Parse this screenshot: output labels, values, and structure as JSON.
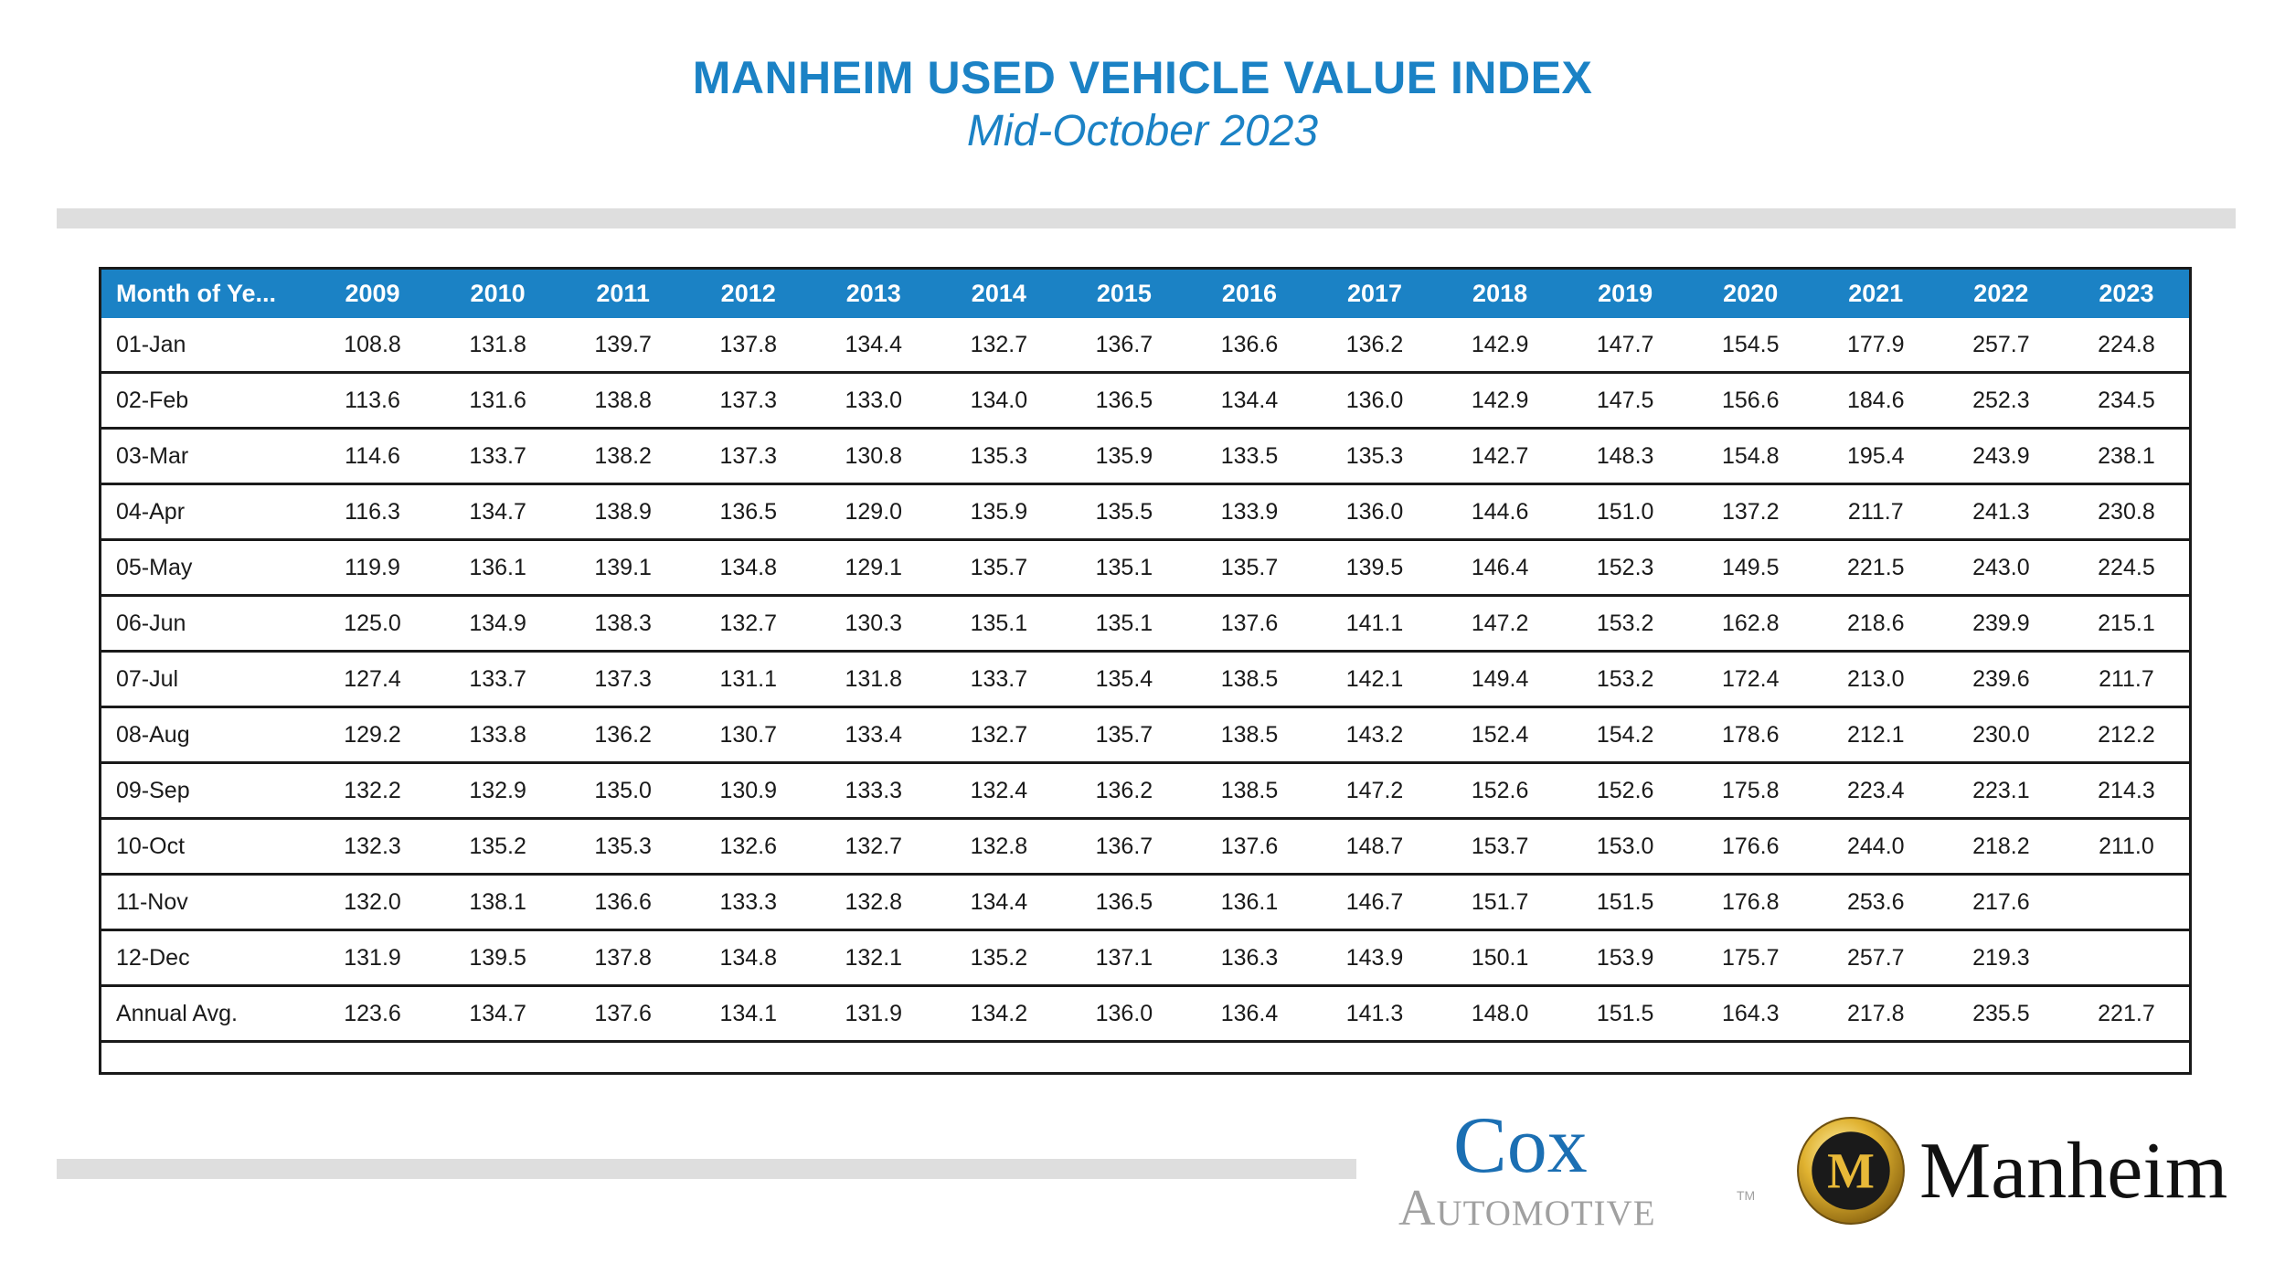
{
  "header": {
    "title": "MANHEIM USED VEHICLE VALUE INDEX",
    "subtitle": "Mid-October 2023"
  },
  "table": {
    "columns": [
      "Month of Ye...",
      "2009",
      "2010",
      "2011",
      "2012",
      "2013",
      "2014",
      "2015",
      "2016",
      "2017",
      "2018",
      "2019",
      "2020",
      "2021",
      "2022",
      "2023"
    ],
    "rows": [
      [
        "01-Jan",
        "108.8",
        "131.8",
        "139.7",
        "137.8",
        "134.4",
        "132.7",
        "136.7",
        "136.6",
        "136.2",
        "142.9",
        "147.7",
        "154.5",
        "177.9",
        "257.7",
        "224.8"
      ],
      [
        "02-Feb",
        "113.6",
        "131.6",
        "138.8",
        "137.3",
        "133.0",
        "134.0",
        "136.5",
        "134.4",
        "136.0",
        "142.9",
        "147.5",
        "156.6",
        "184.6",
        "252.3",
        "234.5"
      ],
      [
        "03-Mar",
        "114.6",
        "133.7",
        "138.2",
        "137.3",
        "130.8",
        "135.3",
        "135.9",
        "133.5",
        "135.3",
        "142.7",
        "148.3",
        "154.8",
        "195.4",
        "243.9",
        "238.1"
      ],
      [
        "04-Apr",
        "116.3",
        "134.7",
        "138.9",
        "136.5",
        "129.0",
        "135.9",
        "135.5",
        "133.9",
        "136.0",
        "144.6",
        "151.0",
        "137.2",
        "211.7",
        "241.3",
        "230.8"
      ],
      [
        "05-May",
        "119.9",
        "136.1",
        "139.1",
        "134.8",
        "129.1",
        "135.7",
        "135.1",
        "135.7",
        "139.5",
        "146.4",
        "152.3",
        "149.5",
        "221.5",
        "243.0",
        "224.5"
      ],
      [
        "06-Jun",
        "125.0",
        "134.9",
        "138.3",
        "132.7",
        "130.3",
        "135.1",
        "135.1",
        "137.6",
        "141.1",
        "147.2",
        "153.2",
        "162.8",
        "218.6",
        "239.9",
        "215.1"
      ],
      [
        "07-Jul",
        "127.4",
        "133.7",
        "137.3",
        "131.1",
        "131.8",
        "133.7",
        "135.4",
        "138.5",
        "142.1",
        "149.4",
        "153.2",
        "172.4",
        "213.0",
        "239.6",
        "211.7"
      ],
      [
        "08-Aug",
        "129.2",
        "133.8",
        "136.2",
        "130.7",
        "133.4",
        "132.7",
        "135.7",
        "138.5",
        "143.2",
        "152.4",
        "154.2",
        "178.6",
        "212.1",
        "230.0",
        "212.2"
      ],
      [
        "09-Sep",
        "132.2",
        "132.9",
        "135.0",
        "130.9",
        "133.3",
        "132.4",
        "136.2",
        "138.5",
        "147.2",
        "152.6",
        "152.6",
        "175.8",
        "223.4",
        "223.1",
        "214.3"
      ],
      [
        "10-Oct",
        "132.3",
        "135.2",
        "135.3",
        "132.6",
        "132.7",
        "132.8",
        "136.7",
        "137.6",
        "148.7",
        "153.7",
        "153.0",
        "176.6",
        "244.0",
        "218.2",
        "211.0"
      ],
      [
        "11-Nov",
        "132.0",
        "138.1",
        "136.6",
        "133.3",
        "132.8",
        "134.4",
        "136.5",
        "136.1",
        "146.7",
        "151.7",
        "151.5",
        "176.8",
        "253.6",
        "217.6",
        ""
      ],
      [
        "12-Dec",
        "131.9",
        "139.5",
        "137.8",
        "134.8",
        "132.1",
        "135.2",
        "137.1",
        "136.3",
        "143.9",
        "150.1",
        "153.9",
        "175.7",
        "257.7",
        "219.3",
        ""
      ],
      [
        "Annual Avg.",
        "123.6",
        "134.7",
        "137.6",
        "134.1",
        "131.9",
        "134.2",
        "136.0",
        "136.4",
        "141.3",
        "148.0",
        "151.5",
        "164.3",
        "217.8",
        "235.5",
        "221.7"
      ]
    ]
  },
  "logos": {
    "cox_top": "Cox",
    "cox_bottom": "Automotive",
    "cox_tm": "TM",
    "manheim_letter": "M",
    "manheim_word": "Manheim"
  },
  "colors": {
    "accent_blue": "#1b82c5",
    "divider_gray": "#dedede",
    "manheim_gold": "#d9a928"
  }
}
